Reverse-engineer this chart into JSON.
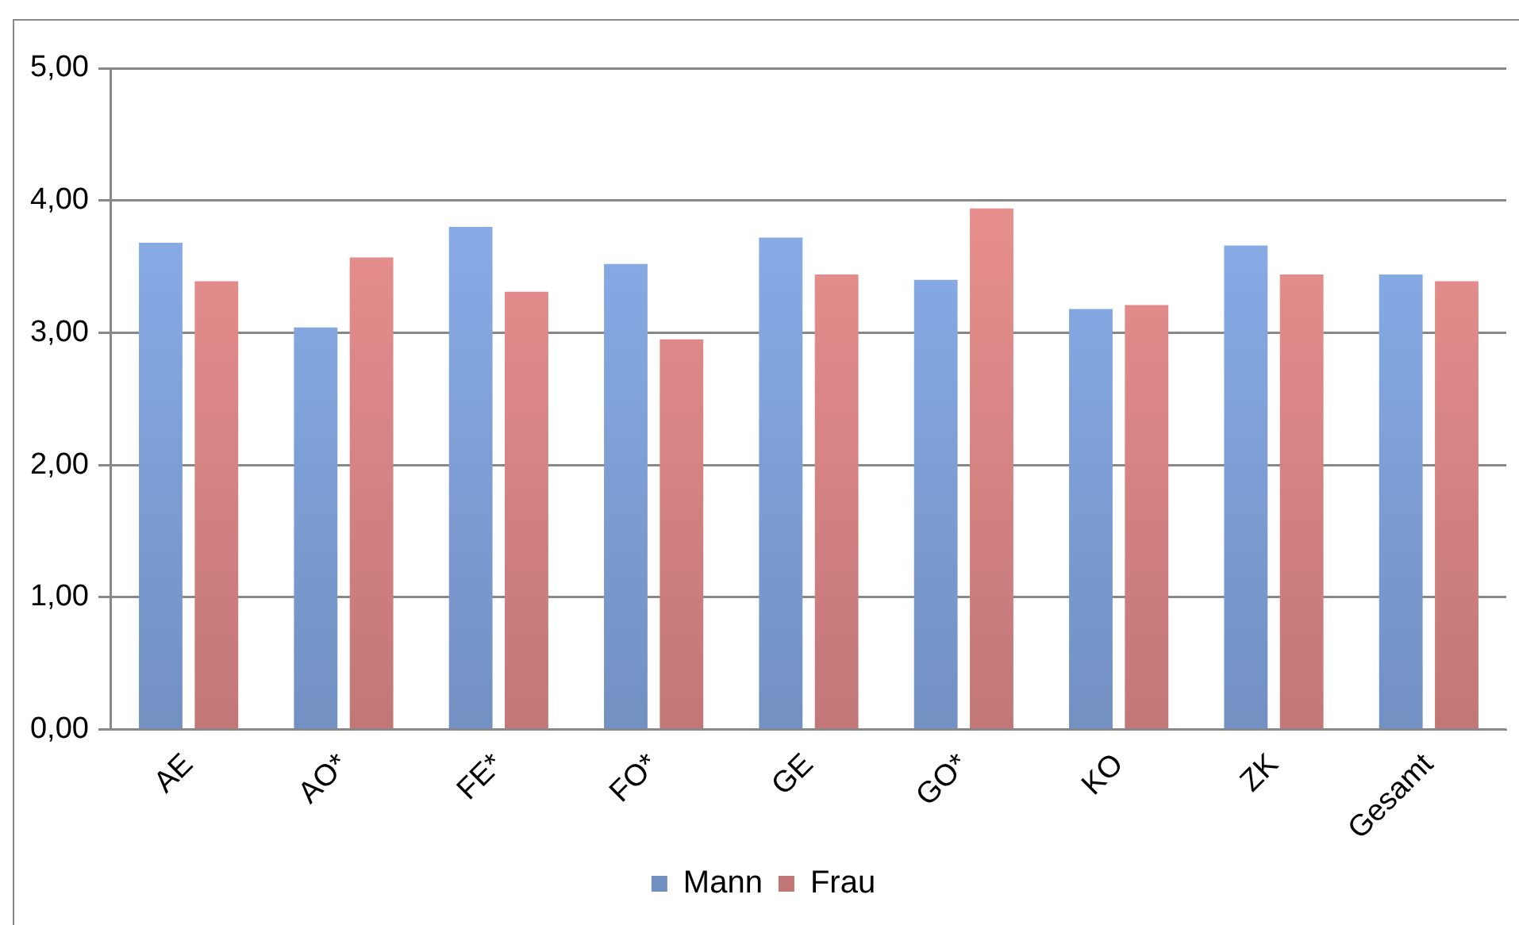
{
  "chart_data": {
    "type": "bar",
    "categories": [
      "AE",
      "AO*",
      "FE*",
      "FO*",
      "GE",
      "GO*",
      "KO",
      "ZK",
      "Gesamt"
    ],
    "series": [
      {
        "name": "Mann",
        "color": "#8fb4f2",
        "values": [
          3.68,
          3.04,
          3.8,
          3.52,
          3.72,
          3.4,
          3.18,
          3.66,
          3.44
        ]
      },
      {
        "name": "Frau",
        "color": "#f29595",
        "values": [
          3.39,
          3.57,
          3.31,
          2.95,
          3.44,
          3.94,
          3.21,
          3.44,
          3.39
        ]
      }
    ],
    "ylim": [
      0,
      5
    ],
    "yticks": [
      {
        "value": 0,
        "label": "0,00"
      },
      {
        "value": 1,
        "label": "1,00"
      },
      {
        "value": 2,
        "label": "2,00"
      },
      {
        "value": 3,
        "label": "3,00"
      },
      {
        "value": 4,
        "label": "4,00"
      },
      {
        "value": 5,
        "label": "5,00"
      }
    ],
    "grid": "y",
    "legend": "bottom"
  }
}
